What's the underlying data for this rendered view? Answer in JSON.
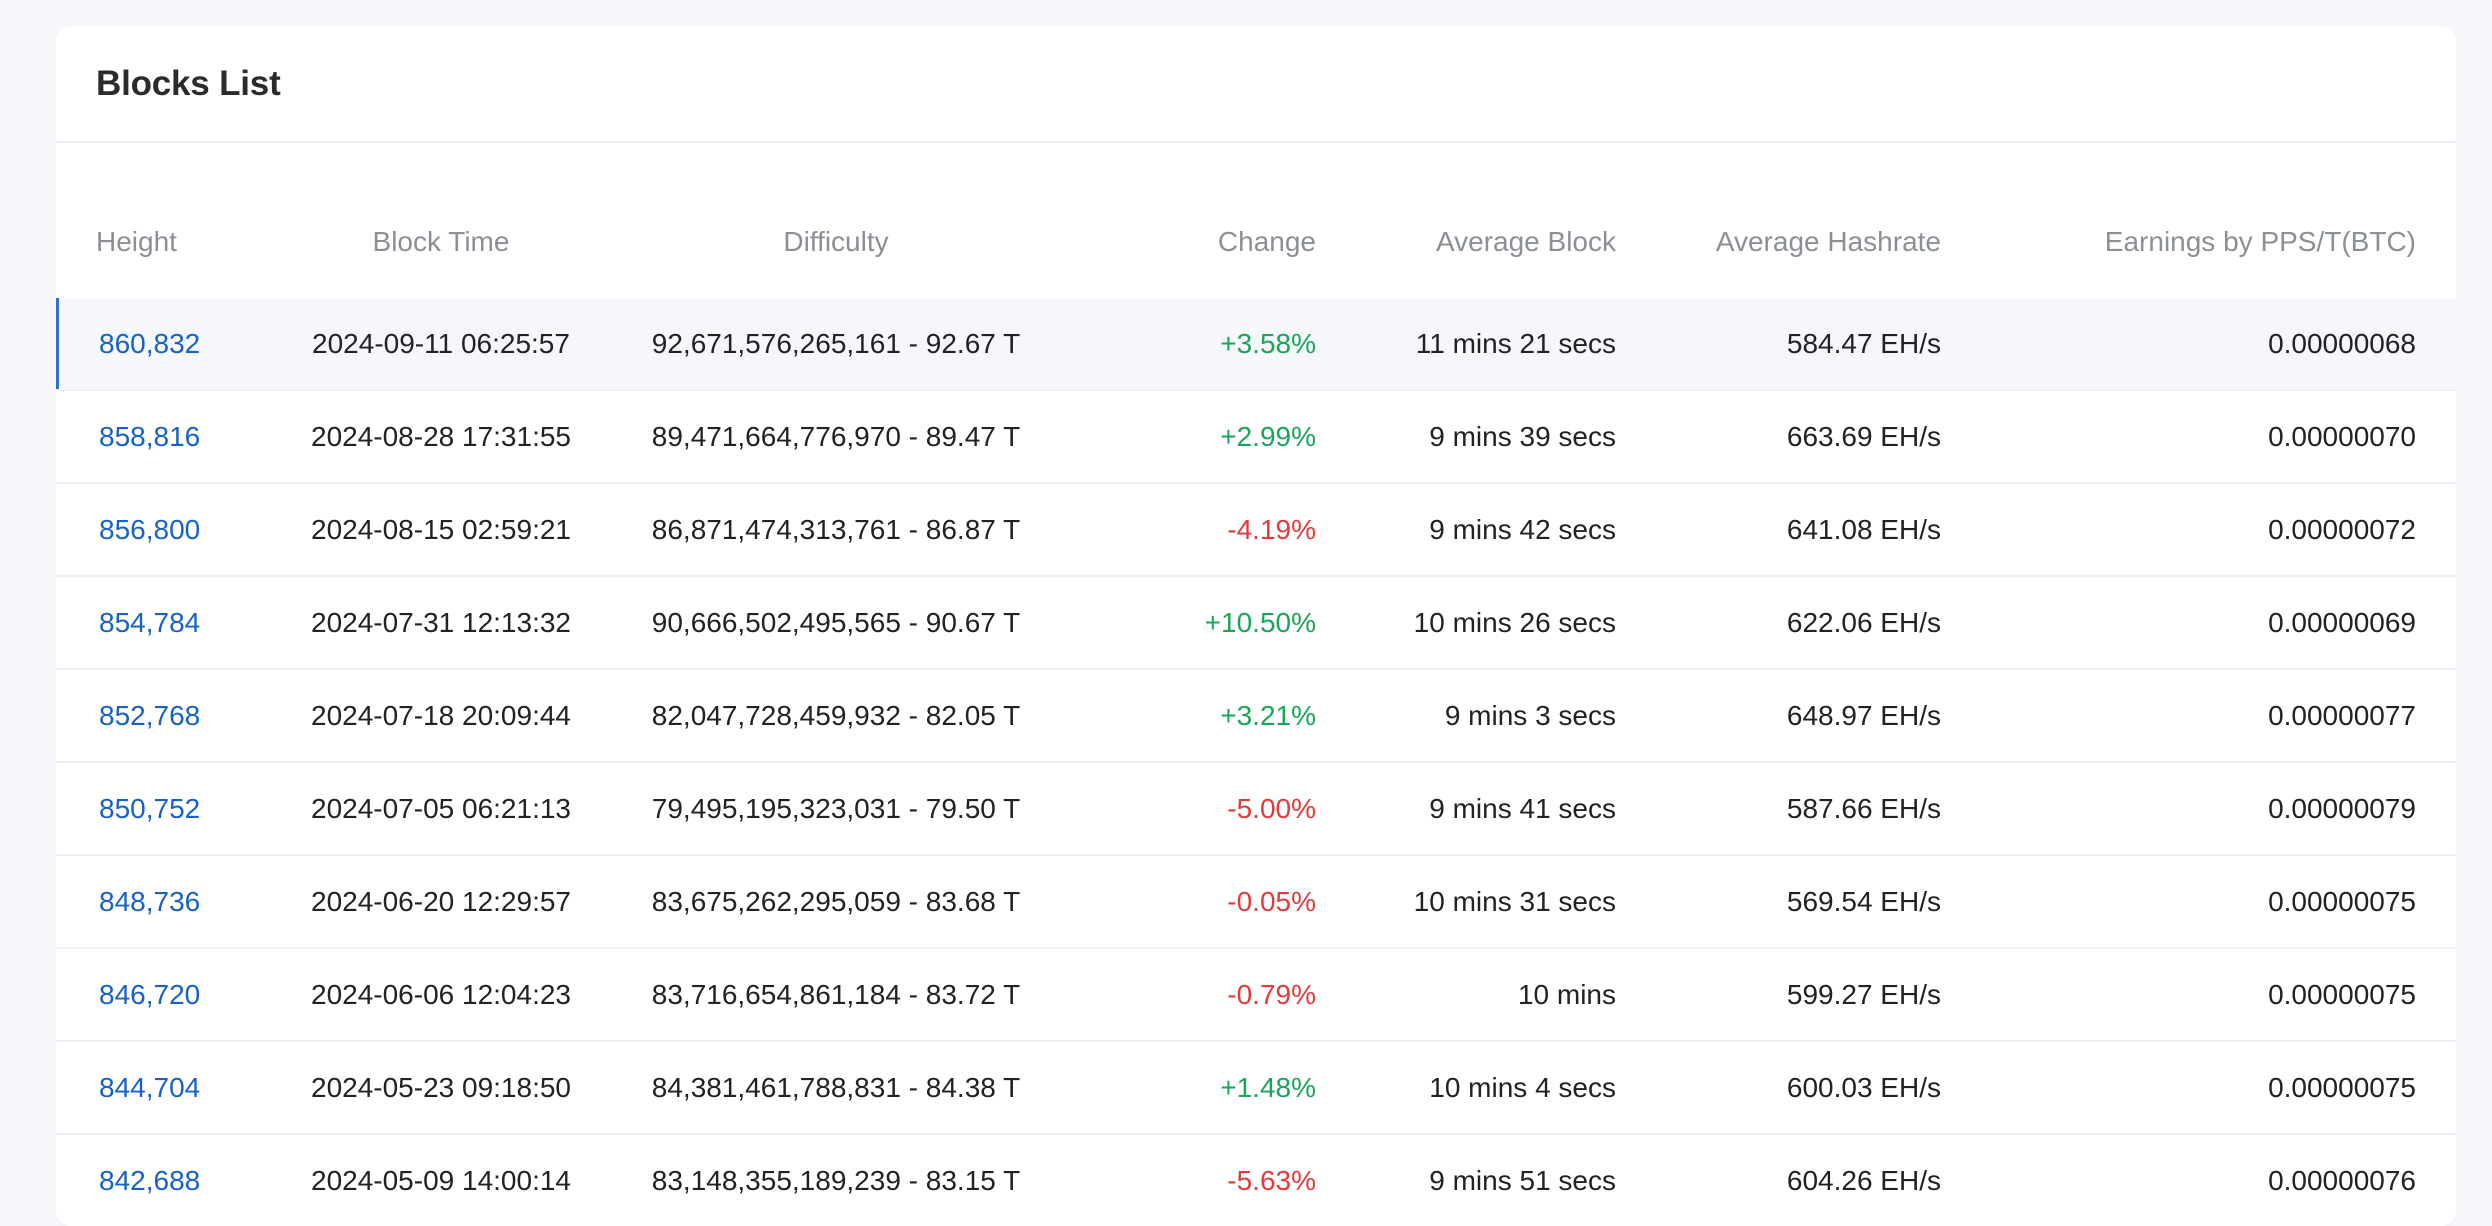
{
  "title": "Blocks List",
  "columns": {
    "height": "Height",
    "block_time": "Block Time",
    "difficulty": "Difficulty",
    "change": "Change",
    "average_block": "Average Block",
    "average_hashrate": "Average Hashrate",
    "earnings": "Earnings by PPS/T(BTC)"
  },
  "colors": {
    "positive": "#1aa55a",
    "negative": "#e23b3b",
    "link": "#1762c4"
  },
  "rows": [
    {
      "height": "860,832",
      "time": "2024-09-11 06:25:57",
      "difficulty": "92,671,576,265,161 - 92.67 T",
      "change": "+3.58%",
      "avg_block": "11 mins 21 secs",
      "hashrate": "584.47 EH/s",
      "earnings": "0.00000068"
    },
    {
      "height": "858,816",
      "time": "2024-08-28 17:31:55",
      "difficulty": "89,471,664,776,970 - 89.47 T",
      "change": "+2.99%",
      "avg_block": "9 mins 39 secs",
      "hashrate": "663.69 EH/s",
      "earnings": "0.00000070"
    },
    {
      "height": "856,800",
      "time": "2024-08-15 02:59:21",
      "difficulty": "86,871,474,313,761 - 86.87 T",
      "change": "-4.19%",
      "avg_block": "9 mins 42 secs",
      "hashrate": "641.08 EH/s",
      "earnings": "0.00000072"
    },
    {
      "height": "854,784",
      "time": "2024-07-31 12:13:32",
      "difficulty": "90,666,502,495,565 - 90.67 T",
      "change": "+10.50%",
      "avg_block": "10 mins 26 secs",
      "hashrate": "622.06 EH/s",
      "earnings": "0.00000069"
    },
    {
      "height": "852,768",
      "time": "2024-07-18 20:09:44",
      "difficulty": "82,047,728,459,932 - 82.05 T",
      "change": "+3.21%",
      "avg_block": "9 mins 3 secs",
      "hashrate": "648.97 EH/s",
      "earnings": "0.00000077"
    },
    {
      "height": "850,752",
      "time": "2024-07-05 06:21:13",
      "difficulty": "79,495,195,323,031 - 79.50 T",
      "change": "-5.00%",
      "avg_block": "9 mins 41 secs",
      "hashrate": "587.66 EH/s",
      "earnings": "0.00000079"
    },
    {
      "height": "848,736",
      "time": "2024-06-20 12:29:57",
      "difficulty": "83,675,262,295,059 - 83.68 T",
      "change": "-0.05%",
      "avg_block": "10 mins 31 secs",
      "hashrate": "569.54 EH/s",
      "earnings": "0.00000075"
    },
    {
      "height": "846,720",
      "time": "2024-06-06 12:04:23",
      "difficulty": "83,716,654,861,184 - 83.72 T",
      "change": "-0.79%",
      "avg_block": "10 mins",
      "hashrate": "599.27 EH/s",
      "earnings": "0.00000075"
    },
    {
      "height": "844,704",
      "time": "2024-05-23 09:18:50",
      "difficulty": "84,381,461,788,831 - 84.38 T",
      "change": "+1.48%",
      "avg_block": "10 mins 4 secs",
      "hashrate": "600.03 EH/s",
      "earnings": "0.00000075"
    },
    {
      "height": "842,688",
      "time": "2024-05-09 14:00:14",
      "difficulty": "83,148,355,189,239 - 83.15 T",
      "change": "-5.63%",
      "avg_block": "9 mins 51 secs",
      "hashrate": "604.26 EH/s",
      "earnings": "0.00000076"
    }
  ]
}
